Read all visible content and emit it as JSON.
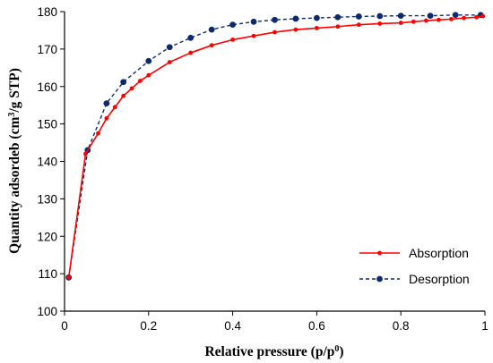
{
  "chart_data": {
    "type": "line",
    "xlabel": "Relative pressure  (p/p",
    "xlabel_sup": "0",
    "xlabel_end": ")",
    "ylabel": "Quantity adsordeb (cm",
    "ylabel_sup": "3",
    "ylabel_end": "/g STP)",
    "xlim": [
      0,
      1
    ],
    "ylim": [
      100,
      180
    ],
    "x_ticks": [
      0,
      0.2,
      0.4,
      0.6,
      0.8,
      1
    ],
    "x_tick_labels": [
      "0",
      "0.2",
      "0.4",
      "0.6",
      "0.8",
      "1"
    ],
    "y_ticks": [
      100,
      110,
      120,
      130,
      140,
      150,
      160,
      170,
      180
    ],
    "y_tick_labels": [
      "100",
      "110",
      "120",
      "130",
      "140",
      "150",
      "160",
      "170",
      "180"
    ],
    "grid": false,
    "legend_position": "bottom-right",
    "series": [
      {
        "name": "Absorption",
        "color": "#ff0000",
        "line_style": "solid",
        "marker": "small-circle",
        "points": [
          [
            0.01,
            109
          ],
          [
            0.05,
            142
          ],
          [
            0.08,
            147.5
          ],
          [
            0.1,
            151.5
          ],
          [
            0.12,
            154.5
          ],
          [
            0.14,
            157.5
          ],
          [
            0.16,
            159.5
          ],
          [
            0.18,
            161.5
          ],
          [
            0.2,
            163
          ],
          [
            0.25,
            166.5
          ],
          [
            0.3,
            169
          ],
          [
            0.35,
            171
          ],
          [
            0.4,
            172.5
          ],
          [
            0.45,
            173.5
          ],
          [
            0.5,
            174.5
          ],
          [
            0.55,
            175.2
          ],
          [
            0.6,
            175.6
          ],
          [
            0.65,
            176
          ],
          [
            0.7,
            176.5
          ],
          [
            0.75,
            176.8
          ],
          [
            0.8,
            177
          ],
          [
            0.83,
            177.3
          ],
          [
            0.86,
            177.6
          ],
          [
            0.89,
            177.8
          ],
          [
            0.92,
            178
          ],
          [
            0.95,
            178.3
          ],
          [
            0.98,
            178.5
          ],
          [
            0.995,
            178.8
          ]
        ]
      },
      {
        "name": "Desorption",
        "color": "#0d2a6e",
        "line_style": "dashed",
        "marker": "circle",
        "points": [
          [
            0.01,
            109
          ],
          [
            0.055,
            143
          ],
          [
            0.1,
            155.5
          ],
          [
            0.14,
            161.2
          ],
          [
            0.2,
            166.8
          ],
          [
            0.25,
            170.5
          ],
          [
            0.3,
            173
          ],
          [
            0.35,
            175.2
          ],
          [
            0.4,
            176.5
          ],
          [
            0.45,
            177.3
          ],
          [
            0.5,
            177.8
          ],
          [
            0.55,
            178.1
          ],
          [
            0.6,
            178.3
          ],
          [
            0.65,
            178.5
          ],
          [
            0.7,
            178.7
          ],
          [
            0.75,
            178.8
          ],
          [
            0.8,
            178.9
          ],
          [
            0.87,
            178.9
          ],
          [
            0.93,
            179.1
          ],
          [
            0.99,
            179.1
          ]
        ]
      }
    ]
  }
}
